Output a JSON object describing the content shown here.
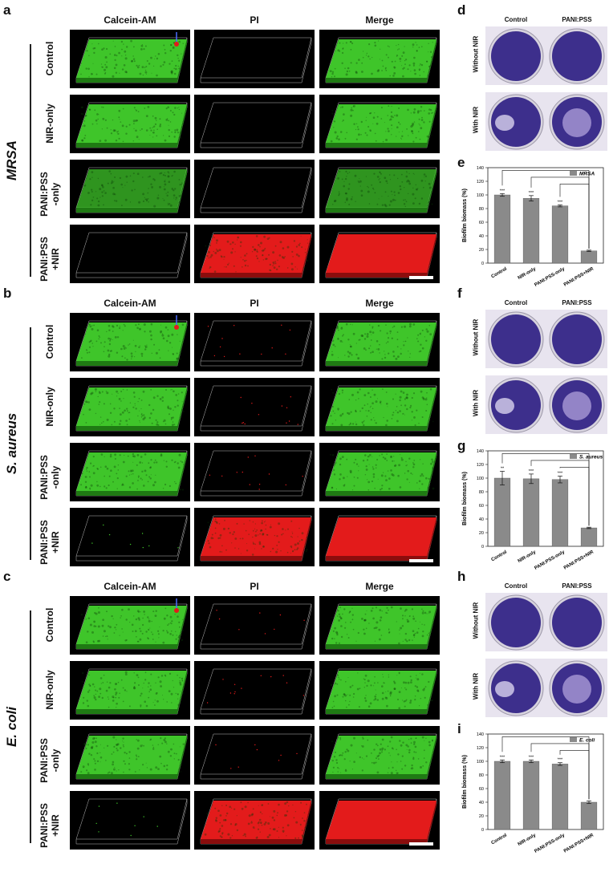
{
  "panels": [
    {
      "letter": "a",
      "species": "MRSA",
      "columns": [
        "Calcein-AM",
        "PI",
        "Merge"
      ],
      "rows": [
        "Control",
        "NIR-only",
        "PANI:PSS\n-only",
        "PANI:PSS\n+NIR"
      ],
      "fluor": [
        [
          1,
          0,
          1
        ],
        [
          1,
          0,
          1
        ],
        [
          0.6,
          0,
          0.6
        ],
        [
          0,
          1,
          1
        ]
      ]
    },
    {
      "letter": "b",
      "species": "S. aureus",
      "columns": [
        "Calcein-AM",
        "PI",
        "Merge"
      ],
      "rows": [
        "Control",
        "NIR-only",
        "PANI:PSS\n-only",
        "PANI:PSS\n+NIR"
      ],
      "fluor": [
        [
          1,
          0.15,
          1
        ],
        [
          1,
          0.15,
          1
        ],
        [
          1,
          0.15,
          1
        ],
        [
          0.1,
          1,
          1
        ]
      ]
    },
    {
      "letter": "c",
      "species": "E. coli",
      "columns": [
        "Calcein-AM",
        "PI",
        "Merge"
      ],
      "rows": [
        "Control",
        "NIR-only",
        "PANI:PSS\n-only",
        "PANI:PSS\n+NIR"
      ],
      "fluor": [
        [
          1,
          0.1,
          1
        ],
        [
          1,
          0.15,
          1
        ],
        [
          1,
          0.1,
          1
        ],
        [
          0.1,
          1,
          1
        ]
      ]
    }
  ],
  "dish_panels": [
    {
      "letter": "d",
      "col_labels": [
        "Control",
        "PANI:PSS"
      ],
      "row_labels": [
        "Without NIR",
        "With NIR"
      ]
    },
    {
      "letter": "f",
      "col_labels": [
        "Control",
        "PANI:PSS"
      ],
      "row_labels": [
        "Without NIR",
        "With NIR"
      ]
    },
    {
      "letter": "h",
      "col_labels": [
        "Control",
        "PANI:PSS"
      ],
      "row_labels": [
        "Without NIR",
        "With NIR"
      ]
    }
  ],
  "chart_data": [
    {
      "letter": "e",
      "type": "bar",
      "categories": [
        "Control",
        "NIR-only",
        "PANI:PSS-only",
        "PANI:PSS+NIR"
      ],
      "values": [
        100,
        95,
        84,
        18
      ],
      "errors": [
        2,
        4,
        1.5,
        1
      ],
      "sig": [
        "***",
        "***",
        "***",
        ""
      ],
      "legend": "MRSA",
      "ylabel": "Biofilm biomass (%)",
      "ylim": [
        0,
        140
      ],
      "yticks": [
        0,
        20,
        40,
        60,
        80,
        100,
        120,
        140
      ]
    },
    {
      "letter": "g",
      "type": "bar",
      "categories": [
        "Control",
        "NIR-only",
        "PANI:PSS-only",
        "PANI:PSS+NIR"
      ],
      "values": [
        100,
        99,
        98,
        27
      ],
      "errors": [
        10,
        7,
        5,
        1
      ],
      "sig": [
        "**",
        "***",
        "***",
        ""
      ],
      "legend": "S. aureus",
      "ylabel": "Biofilm biomass (%)",
      "ylim": [
        0,
        140
      ],
      "yticks": [
        0,
        20,
        40,
        60,
        80,
        100,
        120,
        140
      ]
    },
    {
      "letter": "i",
      "type": "bar",
      "categories": [
        "Control",
        "NIR-only",
        "PANI:PSS-only",
        "PANI:PSS+NIR"
      ],
      "values": [
        100,
        100,
        96,
        40
      ],
      "errors": [
        2,
        2,
        2,
        2
      ],
      "sig": [
        "***",
        "***",
        "***",
        ""
      ],
      "legend": "E. coli",
      "ylabel": "Biofilm biomass (%)",
      "ylim": [
        0,
        140
      ],
      "yticks": [
        0,
        20,
        40,
        60,
        80,
        100,
        120,
        140
      ]
    }
  ],
  "colors": {
    "green": "#3fc52a",
    "red": "#e31b1b",
    "bar": "#8a8a8a",
    "dish": "#3d2f8c"
  }
}
